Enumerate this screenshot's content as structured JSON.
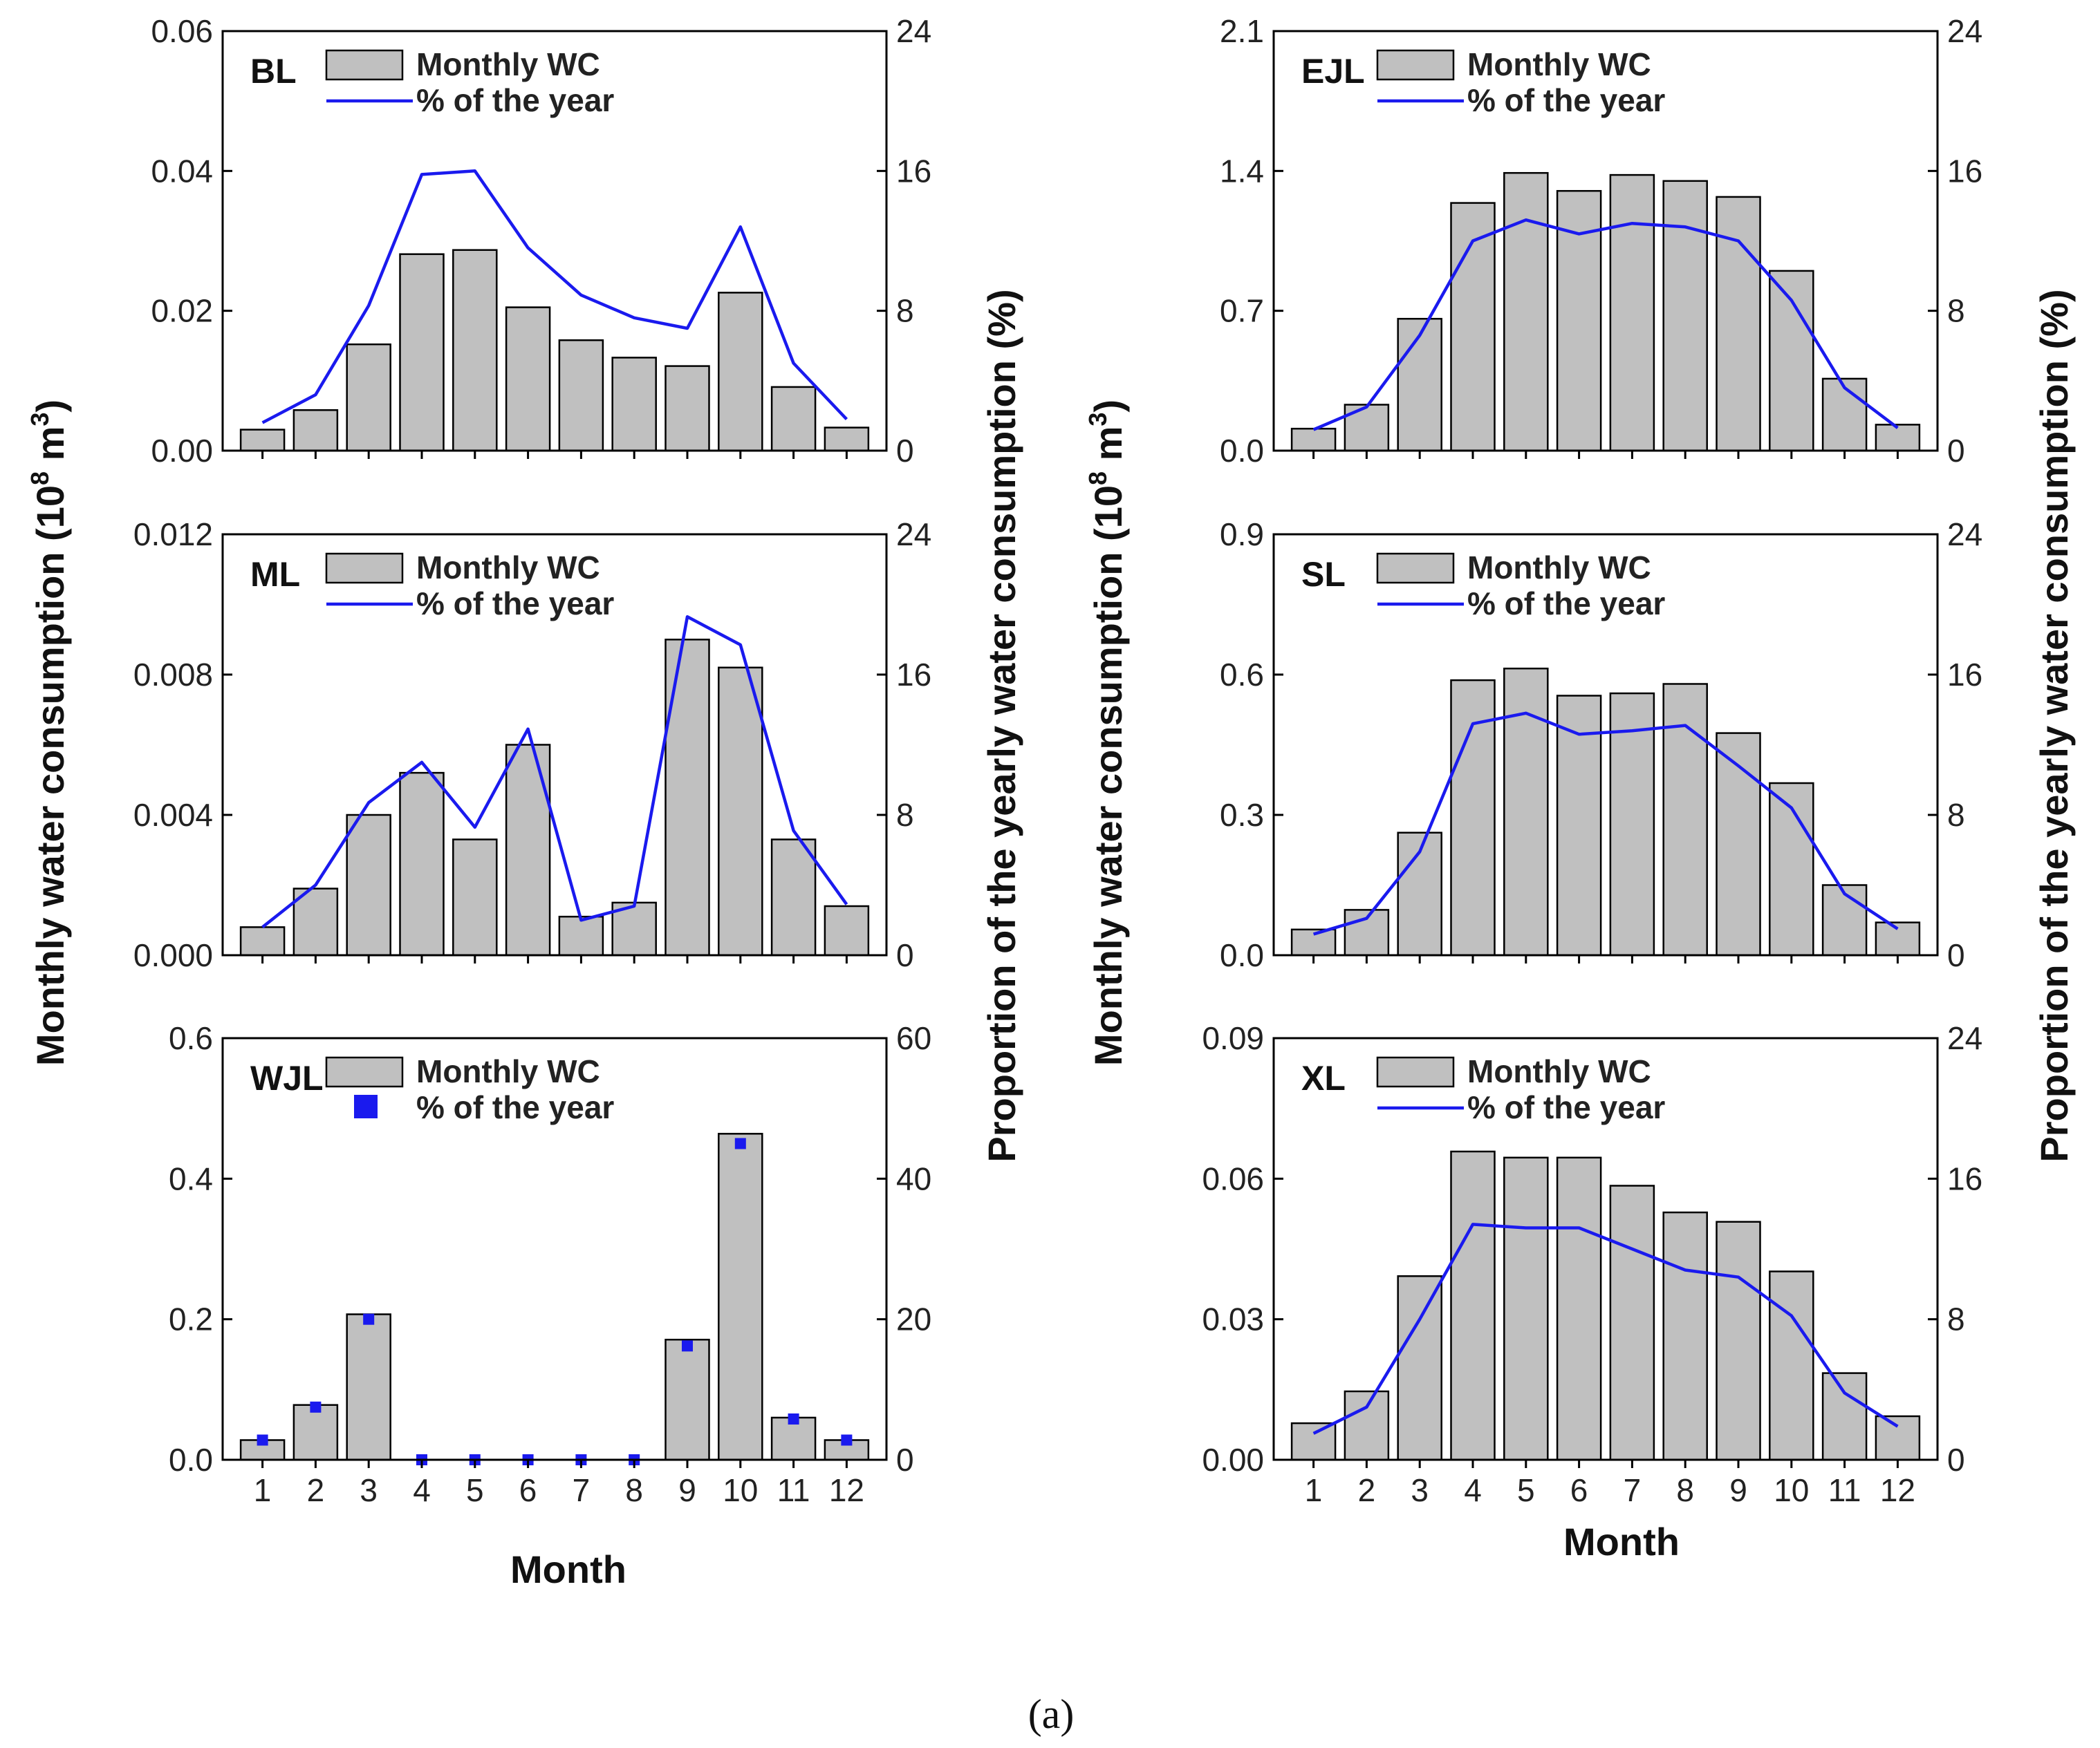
{
  "chart_data": [
    {
      "type": "bar",
      "panel": "BL",
      "title": "BL",
      "categories": [
        1,
        2,
        3,
        4,
        5,
        6,
        7,
        8,
        9,
        10,
        11,
        12
      ],
      "xlabel": "",
      "ylabel": "Monthly water consumption (10^8 m^3)",
      "ylabel2": "Proportion of the yearly water consumption (%)",
      "ylim": [
        0,
        0.06
      ],
      "y2lim": [
        0,
        24
      ],
      "yticks": [
        "0.00",
        "0.02",
        "0.04",
        "0.06"
      ],
      "y2ticks": [
        "0",
        "8",
        "16",
        "24"
      ],
      "series": [
        {
          "name": "Monthly WC",
          "kind": "bar",
          "axis": "left",
          "values": [
            0.003,
            0.0058,
            0.0152,
            0.0281,
            0.0287,
            0.0205,
            0.0158,
            0.0133,
            0.0121,
            0.0226,
            0.0091,
            0.0033
          ]
        },
        {
          "name": "% of the year",
          "kind": "line",
          "axis": "right",
          "values": [
            1.6,
            3.2,
            8.3,
            15.8,
            16.0,
            11.6,
            8.9,
            7.6,
            7.0,
            12.8,
            5.0,
            1.8
          ]
        }
      ],
      "legend": [
        "Monthly WC",
        "% of the year"
      ]
    },
    {
      "type": "bar",
      "panel": "ML",
      "title": "ML",
      "categories": [
        1,
        2,
        3,
        4,
        5,
        6,
        7,
        8,
        9,
        10,
        11,
        12
      ],
      "ylim": [
        0,
        0.012
      ],
      "y2lim": [
        0,
        24
      ],
      "yticks": [
        "0.000",
        "0.004",
        "0.008",
        "0.012"
      ],
      "y2ticks": [
        "0",
        "8",
        "16",
        "24"
      ],
      "series": [
        {
          "name": "Monthly WC",
          "kind": "bar",
          "axis": "left",
          "values": [
            0.0008,
            0.0019,
            0.004,
            0.0052,
            0.0033,
            0.006,
            0.0011,
            0.0015,
            0.009,
            0.0082,
            0.0033,
            0.0014
          ]
        },
        {
          "name": "% of the year",
          "kind": "line",
          "axis": "right",
          "values": [
            1.6,
            4.0,
            8.7,
            11.0,
            7.3,
            12.9,
            2.0,
            2.8,
            19.3,
            17.7,
            7.1,
            2.9
          ]
        }
      ],
      "legend": [
        "Monthly WC",
        "% of the year"
      ]
    },
    {
      "type": "bar",
      "panel": "WJL",
      "title": "WJL",
      "categories": [
        1,
        2,
        3,
        4,
        5,
        6,
        7,
        8,
        9,
        10,
        11,
        12
      ],
      "xlabel": "Month",
      "ylim": [
        0,
        0.6
      ],
      "y2lim": [
        0,
        60
      ],
      "yticks": [
        "0.0",
        "0.2",
        "0.4",
        "0.6"
      ],
      "y2ticks": [
        "0",
        "20",
        "40",
        "60"
      ],
      "xticks": [
        "1",
        "2",
        "3",
        "4",
        "5",
        "6",
        "7",
        "8",
        "9",
        "10",
        "11",
        "12"
      ],
      "series": [
        {
          "name": "Monthly WC",
          "kind": "bar",
          "axis": "left",
          "values": [
            0.028,
            0.078,
            0.207,
            0,
            0,
            0,
            0,
            0,
            0.171,
            0.464,
            0.06,
            0.028
          ]
        },
        {
          "name": "% of the year",
          "kind": "scatter",
          "axis": "right",
          "values": [
            2.8,
            7.5,
            20.0,
            0,
            0,
            0,
            0,
            0,
            16.2,
            45.0,
            5.8,
            2.8
          ]
        }
      ],
      "legend": [
        "Monthly WC",
        "% of the year"
      ]
    },
    {
      "type": "bar",
      "panel": "EJL",
      "title": "EJL",
      "categories": [
        1,
        2,
        3,
        4,
        5,
        6,
        7,
        8,
        9,
        10,
        11,
        12
      ],
      "ylim": [
        0,
        2.1
      ],
      "y2lim": [
        0,
        24
      ],
      "yticks": [
        "0.0",
        "0.7",
        "1.4",
        "2.1"
      ],
      "y2ticks": [
        "0",
        "8",
        "16",
        "24"
      ],
      "series": [
        {
          "name": "Monthly WC",
          "kind": "bar",
          "axis": "left",
          "values": [
            0.11,
            0.23,
            0.66,
            1.24,
            1.39,
            1.3,
            1.38,
            1.35,
            1.27,
            0.9,
            0.36,
            0.13
          ]
        },
        {
          "name": "% of the year",
          "kind": "line",
          "axis": "right",
          "values": [
            1.2,
            2.5,
            6.6,
            12.0,
            13.2,
            12.4,
            13.0,
            12.8,
            12.0,
            8.6,
            3.6,
            1.3
          ]
        }
      ],
      "legend": [
        "Monthly WC",
        "% of the year"
      ]
    },
    {
      "type": "bar",
      "panel": "SL",
      "title": "SL",
      "categories": [
        1,
        2,
        3,
        4,
        5,
        6,
        7,
        8,
        9,
        10,
        11,
        12
      ],
      "ylim": [
        0,
        0.9
      ],
      "y2lim": [
        0,
        24
      ],
      "yticks": [
        "0.0",
        "0.3",
        "0.6",
        "0.9"
      ],
      "y2ticks": [
        "0",
        "8",
        "16",
        "24"
      ],
      "series": [
        {
          "name": "Monthly WC",
          "kind": "bar",
          "axis": "left",
          "values": [
            0.055,
            0.097,
            0.262,
            0.588,
            0.613,
            0.555,
            0.56,
            0.58,
            0.475,
            0.368,
            0.15,
            0.07
          ]
        },
        {
          "name": "% of the year",
          "kind": "line",
          "axis": "right",
          "values": [
            1.2,
            2.1,
            5.9,
            13.2,
            13.8,
            12.6,
            12.8,
            13.1,
            10.8,
            8.4,
            3.5,
            1.5
          ]
        }
      ],
      "legend": [
        "Monthly WC",
        "% of the year"
      ]
    },
    {
      "type": "bar",
      "panel": "XL",
      "title": "XL",
      "categories": [
        1,
        2,
        3,
        4,
        5,
        6,
        7,
        8,
        9,
        10,
        11,
        12
      ],
      "xlabel": "Month",
      "ylim": [
        0,
        0.09
      ],
      "y2lim": [
        0,
        24
      ],
      "yticks": [
        "0.00",
        "0.03",
        "0.06",
        "0.09"
      ],
      "y2ticks": [
        "0",
        "8",
        "16",
        "24"
      ],
      "xticks": [
        "1",
        "2",
        "3",
        "4",
        "5",
        "6",
        "7",
        "8",
        "9",
        "10",
        "11",
        "12"
      ],
      "series": [
        {
          "name": "Monthly WC",
          "kind": "bar",
          "axis": "left",
          "values": [
            0.0078,
            0.0146,
            0.0392,
            0.0658,
            0.0645,
            0.0645,
            0.0585,
            0.0528,
            0.0508,
            0.0402,
            0.0185,
            0.0093
          ]
        },
        {
          "name": "% of the year",
          "kind": "line",
          "axis": "right",
          "values": [
            1.5,
            3.0,
            8.0,
            13.4,
            13.2,
            13.2,
            12.0,
            10.8,
            10.4,
            8.2,
            3.8,
            1.9
          ]
        }
      ],
      "legend": [
        "Monthly WC",
        "% of the year"
      ]
    }
  ],
  "labels": {
    "left_ylabel": "Monthly water consumption (10",
    "left_ylabel_exp": "8",
    "left_ylabel_unit": " m",
    "left_ylabel_exp2": "3",
    "left_ylabel_close": ")",
    "right_ylabel": "Proportion of the yearly water consumption (%)",
    "xlabel": "Month",
    "caption": "(a)"
  },
  "colors": {
    "bar_fill": "#c0c0c0",
    "bar_stroke": "#000000",
    "line": "#1a1aee",
    "marker": "#1a1aee"
  }
}
